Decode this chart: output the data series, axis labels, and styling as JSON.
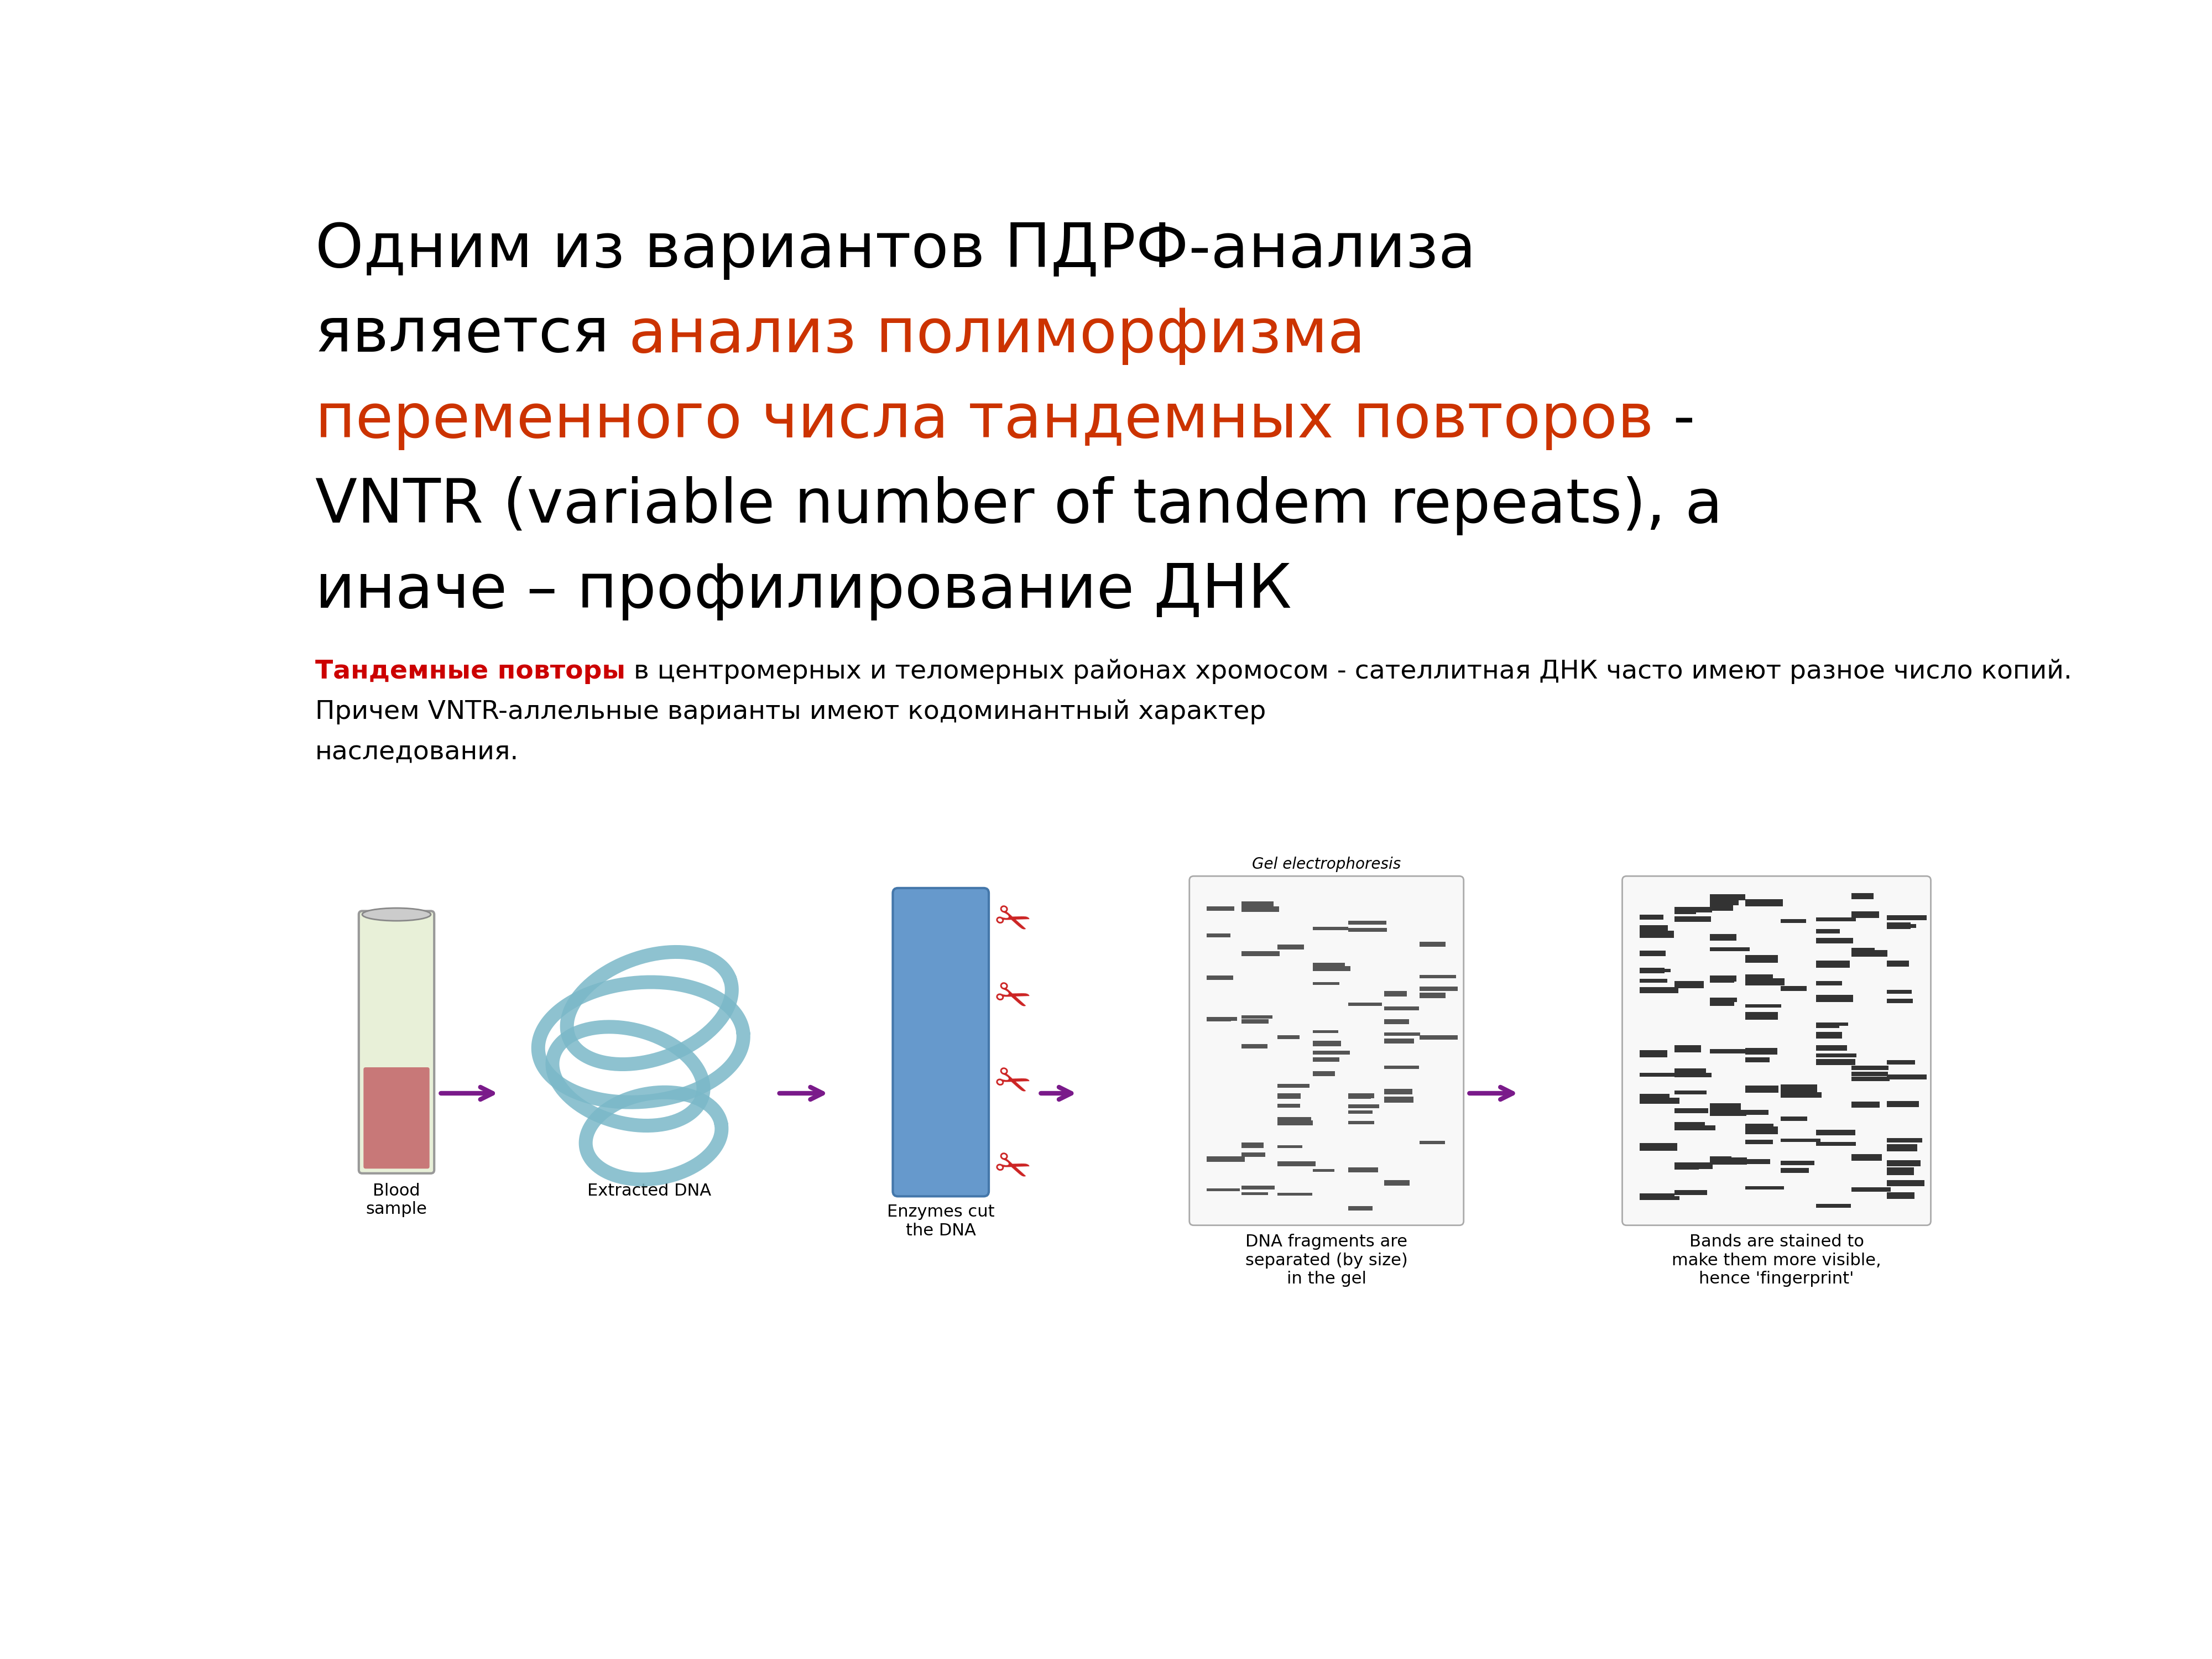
{
  "bg_color": "#ffffff",
  "title_line1": "Одним из вариантов ПДРФ-анализа",
  "title_line2_b": "является ",
  "title_line2_o": "анализ полиморфизма",
  "title_line3_o": "переменного числа тандемных повторов",
  "title_line3_b": " -",
  "title_line4": "VNTR (variable number of tandem repeats), а",
  "title_line5": "иначе – профилирование ДНК",
  "sub_bold": "Тандемные повторы",
  "sub_line1_rest": " в центромерных и теломерных районах хромосом - сателлитная ДНК часто имеют разное число копий.",
  "sub_line2": "Причем VNTR-аллельные варианты имеют кодоминантный характер",
  "sub_line3": "наследования.",
  "orange": "#cc3300",
  "sub_red": "#cc0000",
  "black": "#000000",
  "arrow_color": "#7a1a8a",
  "gel_label": "Gel electrophoresis",
  "lbl_blood": "Blood\nsample",
  "lbl_dna": "Extracted DNA",
  "lbl_enzyme": "Enzymes cut\nthe DNA",
  "lbl_gel": "DNA fragments are\nseparated (by size)\nin the gel",
  "lbl_bands": "Bands are stained to\nmake them more visible,\nhence 'fingerprint'",
  "title_fs": 80,
  "sub_fs": 34,
  "label_fs": 22,
  "gel_label_fs": 20
}
